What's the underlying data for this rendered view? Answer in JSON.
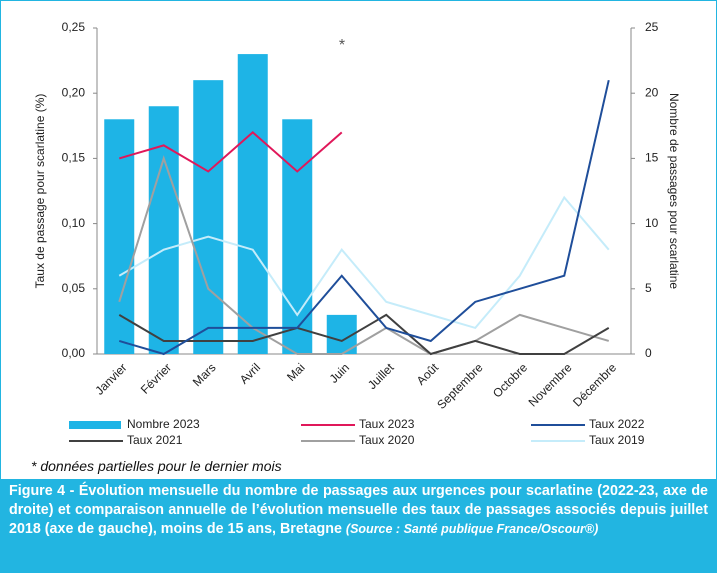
{
  "chart_data": {
    "type": "bar",
    "annotation": "*",
    "ylabel": "Taux de passage pour scarlatine (%)",
    "y2label": "Nombre de passages pour scarlatine",
    "categories": [
      "Janvier",
      "Février",
      "Mars",
      "Avril",
      "Mai",
      "Juin",
      "Juillet",
      "Août",
      "Septembre",
      "Octobre",
      "Novembre",
      "Décembre"
    ],
    "ylim": [
      0,
      0.25
    ],
    "yticks": [
      {
        "value": 0,
        "label": "0,00"
      },
      {
        "value": 0.05,
        "label": "0,05"
      },
      {
        "value": 0.1,
        "label": "0,10"
      },
      {
        "value": 0.15,
        "label": "0,15"
      },
      {
        "value": 0.2,
        "label": "0,20"
      },
      {
        "value": 0.25,
        "label": "0,25"
      }
    ],
    "y2lim": [
      0,
      25
    ],
    "y2ticks": [
      0,
      5,
      10,
      15,
      20,
      25
    ],
    "series": [
      {
        "name": "Nombre 2023",
        "type": "bar",
        "axis": "y2",
        "color": "#1eb4e6",
        "values": [
          18,
          19,
          21,
          23,
          18,
          3,
          null,
          null,
          null,
          null,
          null,
          null
        ]
      },
      {
        "name": "Taux 2023",
        "type": "line",
        "color": "#e0185a",
        "values": [
          0.15,
          0.16,
          0.14,
          0.17,
          0.14,
          0.17,
          null,
          null,
          null,
          null,
          null,
          null
        ]
      },
      {
        "name": "Taux 2022",
        "type": "line",
        "color": "#1f4e9a",
        "values": [
          0.01,
          0.0,
          0.02,
          0.02,
          0.02,
          0.06,
          0.02,
          0.01,
          0.04,
          0.05,
          0.06,
          0.21
        ]
      },
      {
        "name": "Taux 2021",
        "type": "line",
        "color": "#404040",
        "values": [
          0.03,
          0.01,
          0.01,
          0.01,
          0.02,
          0.01,
          0.03,
          0.0,
          0.01,
          0.0,
          0.0,
          0.02
        ]
      },
      {
        "name": "Taux 2020",
        "type": "line",
        "color": "#a0a0a0",
        "values": [
          0.04,
          0.15,
          0.05,
          0.02,
          0.0,
          0.0,
          0.02,
          0.0,
          0.01,
          0.03,
          0.02,
          0.01
        ]
      },
      {
        "name": "Taux 2019",
        "type": "line",
        "color": "#c5ecfa",
        "values": [
          0.06,
          0.08,
          0.09,
          0.08,
          0.03,
          0.08,
          0.04,
          0.03,
          0.02,
          0.06,
          0.12,
          0.08
        ]
      }
    ]
  },
  "footnote": "* données partielles pour le dernier mois",
  "caption": "Figure 4 - Évolution mensuelle du nombre de passages aux urgences pour scarlatine (2022-23, axe de droite) et comparaison annuelle de l’évolution mensuelle des taux de passages associés depuis juillet 2018 (axe de gauche), moins de 15 ans, Bretagne",
  "source": "(Source : Santé publique France/Oscour®)"
}
